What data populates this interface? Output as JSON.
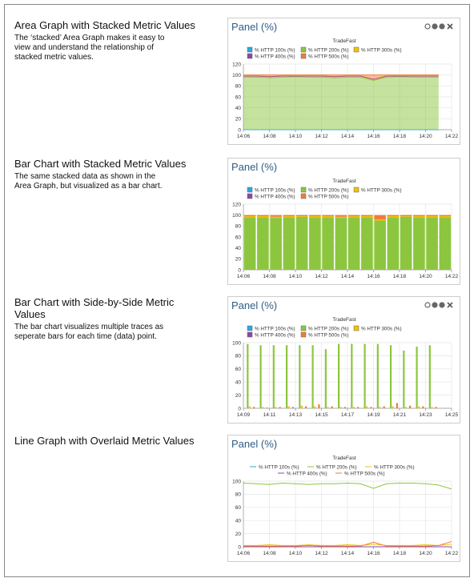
{
  "sections": [
    {
      "heading": "Area Graph with Stacked Metric Values",
      "description": "The ‘stacked’ Area Graph makes it easy to view and understand the relationship of stacked metric values."
    },
    {
      "heading": "Bar Chart with Stacked Metric Values",
      "description": "The same stacked data as shown in the Area Graph, but visualized as a bar chart."
    },
    {
      "heading": "Bar Chart with Side-by-Side Metric Values",
      "description": "The bar chart visualizes multiple traces as seperate bars for each time (data) point."
    },
    {
      "heading": "Line Graph with Overlaid Metric Values"
    }
  ],
  "chart_data": [
    {
      "type": "area",
      "title": "Panel (%)",
      "subtitle": "TradeFast",
      "grid": true,
      "categories": [
        "14:06",
        null,
        "14:08",
        null,
        "14:10",
        null,
        "14:12",
        null,
        "14:14",
        null,
        "14:16",
        null,
        "14:18",
        null,
        "14:20",
        null,
        "14:22"
      ],
      "ylim": [
        0,
        120
      ],
      "yticks": [
        0,
        20,
        40,
        60,
        80,
        100,
        120
      ],
      "series": [
        {
          "name": "% HTTP 100s (%)",
          "color": "#29a9e0",
          "values": [
            0,
            0,
            0,
            0,
            0,
            0,
            0,
            0,
            0,
            0,
            0,
            0,
            0,
            0,
            0,
            0,
            null
          ]
        },
        {
          "name": "% HTTP 200s (%)",
          "color": "#8cc63f",
          "values": [
            96,
            96,
            95,
            96,
            97,
            96,
            96,
            95,
            96,
            96,
            90,
            96,
            97,
            96,
            96,
            96,
            null
          ]
        },
        {
          "name": "% HTTP 300s (%)",
          "color": "#f2c200",
          "values": [
            2,
            2,
            2,
            2,
            1,
            2,
            2,
            2,
            2,
            2,
            2,
            2,
            1,
            2,
            2,
            2,
            null
          ]
        },
        {
          "name": "% HTTP 400s (%)",
          "color": "#8e44ad",
          "values": [
            0,
            0,
            0,
            0,
            0,
            0,
            0,
            0,
            0,
            0,
            0,
            0,
            0,
            0,
            0,
            0,
            null
          ]
        },
        {
          "name": "% HTTP 500s (%)",
          "color": "#f47a3a",
          "values": [
            2,
            2,
            3,
            2,
            2,
            2,
            2,
            3,
            2,
            2,
            8,
            2,
            2,
            2,
            2,
            2,
            null
          ]
        }
      ]
    },
    {
      "type": "bar",
      "stacked": true,
      "title": "Panel (%)",
      "subtitle": "TradeFast",
      "grid": true,
      "categories": [
        "14:06",
        null,
        "14:08",
        null,
        "14:10",
        null,
        "14:12",
        null,
        "14:14",
        null,
        "14:16",
        null,
        "14:18",
        null,
        "14:20",
        null,
        "14:22"
      ],
      "ylim": [
        0,
        120
      ],
      "yticks": [
        0,
        20,
        40,
        60,
        80,
        100,
        120
      ],
      "series": [
        {
          "name": "% HTTP 100s (%)",
          "color": "#29a9e0",
          "values": [
            0,
            0,
            0,
            0,
            0,
            0,
            0,
            0,
            0,
            0,
            0,
            0,
            0,
            0,
            0,
            0,
            null
          ]
        },
        {
          "name": "% HTTP 200s (%)",
          "color": "#8cc63f",
          "values": [
            96,
            96,
            95,
            96,
            97,
            96,
            96,
            95,
            96,
            96,
            90,
            96,
            97,
            96,
            96,
            96,
            null
          ]
        },
        {
          "name": "% HTTP 300s (%)",
          "color": "#f2c200",
          "values": [
            2,
            2,
            2,
            2,
            1,
            2,
            2,
            2,
            2,
            2,
            2,
            2,
            1,
            2,
            2,
            2,
            null
          ]
        },
        {
          "name": "% HTTP 400s (%)",
          "color": "#8e44ad",
          "values": [
            0,
            0,
            0,
            0,
            0,
            0,
            0,
            0,
            0,
            0,
            0,
            0,
            0,
            0,
            0,
            0,
            null
          ]
        },
        {
          "name": "% HTTP 500s (%)",
          "color": "#f47a3a",
          "values": [
            2,
            2,
            3,
            2,
            2,
            2,
            2,
            3,
            2,
            2,
            8,
            2,
            2,
            2,
            2,
            2,
            null
          ]
        }
      ]
    },
    {
      "type": "bar",
      "stacked": false,
      "title": "Panel (%)",
      "subtitle": "TradeFast",
      "grid": true,
      "categories": [
        "14:09",
        null,
        "14:11",
        null,
        "14:13",
        null,
        "14:15",
        null,
        "14:17",
        null,
        "14:19",
        null,
        "14:21",
        null,
        "14:23",
        null,
        "14:25"
      ],
      "ylim": [
        0,
        100
      ],
      "yticks": [
        0,
        20,
        40,
        60,
        80,
        100
      ],
      "series": [
        {
          "name": "% HTTP 100s (%)",
          "color": "#29a9e0",
          "values": [
            0,
            0,
            0,
            0,
            0,
            0,
            0,
            0,
            0,
            0,
            0,
            0,
            0,
            0,
            0,
            null,
            null
          ]
        },
        {
          "name": "% HTTP 200s (%)",
          "color": "#8cc63f",
          "values": [
            98,
            96,
            96,
            96,
            96,
            96,
            90,
            98,
            98,
            98,
            98,
            96,
            88,
            94,
            96,
            null,
            null
          ]
        },
        {
          "name": "% HTTP 300s (%)",
          "color": "#f2c200",
          "values": [
            3,
            2,
            2,
            3,
            4,
            3,
            2,
            2,
            2,
            3,
            2,
            3,
            2,
            3,
            2,
            null,
            null
          ]
        },
        {
          "name": "% HTTP 400s (%)",
          "color": "#8e44ad",
          "values": [
            0,
            0,
            0,
            0,
            0,
            0,
            0,
            0,
            0,
            0,
            0,
            0,
            0,
            0,
            0,
            null,
            null
          ]
        },
        {
          "name": "% HTTP 500s (%)",
          "color": "#f47a3a",
          "values": [
            2,
            1,
            2,
            2,
            3,
            6,
            3,
            2,
            2,
            2,
            3,
            8,
            4,
            3,
            2,
            null,
            null
          ]
        }
      ]
    },
    {
      "type": "line",
      "title": "Panel (%)",
      "subtitle": "TradeFast",
      "grid": true,
      "categories": [
        "14:06",
        null,
        "14:08",
        null,
        "14:10",
        null,
        "14:12",
        null,
        "14:14",
        null,
        "14:16",
        null,
        "14:18",
        null,
        "14:20",
        null,
        "14:22"
      ],
      "ylim": [
        0,
        100
      ],
      "yticks": [
        0,
        20,
        40,
        60,
        80,
        100
      ],
      "series": [
        {
          "name": "% HTTP 100s (%)",
          "color": "#29a9e0",
          "values": [
            0,
            0,
            0,
            0,
            0,
            0,
            0,
            0,
            0,
            0,
            0,
            0,
            0,
            0,
            0,
            0,
            0
          ]
        },
        {
          "name": "% HTTP 200s (%)",
          "color": "#8cc63f",
          "values": [
            97,
            96,
            95,
            97,
            96,
            95,
            96,
            96,
            97,
            96,
            89,
            96,
            97,
            97,
            96,
            94,
            88
          ]
        },
        {
          "name": "% HTTP 300s (%)",
          "color": "#f2c200",
          "values": [
            2,
            2,
            3,
            2,
            2,
            3,
            2,
            2,
            3,
            2,
            4,
            2,
            2,
            2,
            3,
            2,
            4
          ]
        },
        {
          "name": "% HTTP 400s (%)",
          "color": "#8e44ad",
          "values": [
            0,
            0,
            0,
            0,
            0,
            0,
            0,
            0,
            0,
            0,
            0,
            0,
            0,
            0,
            0,
            0,
            0
          ]
        },
        {
          "name": "% HTTP 500s (%)",
          "color": "#f47a3a",
          "values": [
            1,
            1,
            1,
            1,
            1,
            2,
            1,
            1,
            1,
            1,
            7,
            1,
            1,
            1,
            1,
            2,
            8
          ]
        }
      ]
    }
  ]
}
